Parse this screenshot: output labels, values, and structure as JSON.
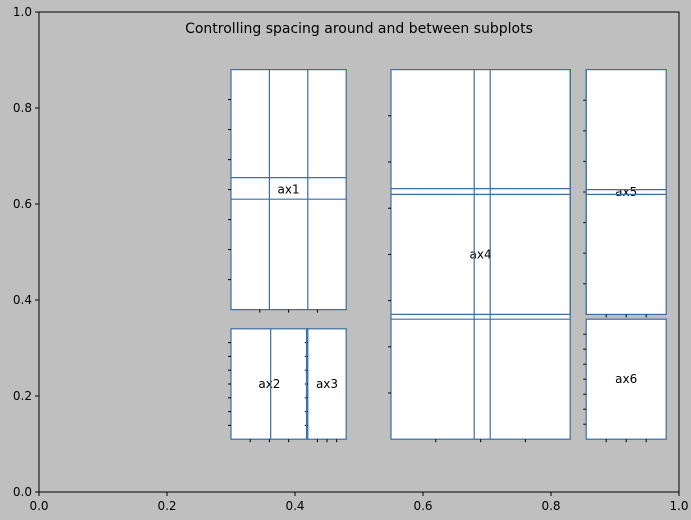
{
  "chart_data": {
    "type": "diagram",
    "title": "Controlling spacing around and between subplots",
    "xlim": [
      0,
      1
    ],
    "ylim": [
      0,
      1
    ],
    "xticks": [
      0.0,
      0.2,
      0.4,
      0.6,
      0.8,
      1.0
    ],
    "xtick_labels": [
      "0.0",
      "0.2",
      "0.4",
      "0.6",
      "0.8",
      "1.0"
    ],
    "yticks": [
      0.0,
      0.2,
      0.4,
      0.6,
      0.8,
      1.0
    ],
    "ytick_labels": [
      "0.0",
      "0.2",
      "0.4",
      "0.6",
      "0.8",
      "1.0"
    ],
    "grid": false,
    "colors": {
      "background": "#bfbfbf",
      "subplot_edge": "#3a6ea5",
      "subplot_fill": "#ffffff"
    },
    "subplots": [
      {
        "name": "ax1",
        "xrange": [
          0.3,
          0.48
        ],
        "yrange": [
          0.38,
          0.88
        ]
      },
      {
        "name": "ax2",
        "xrange": [
          0.3,
          0.42
        ],
        "yrange": [
          0.11,
          0.34
        ]
      },
      {
        "name": "ax3",
        "xrange": [
          0.42,
          0.48
        ],
        "yrange": [
          0.11,
          0.34
        ]
      },
      {
        "name": "ax4",
        "xrange": [
          0.55,
          0.83
        ],
        "yrange": [
          0.11,
          0.88
        ]
      },
      {
        "name": "ax5",
        "xrange": [
          0.855,
          0.98
        ],
        "yrange": [
          0.37,
          0.88
        ]
      },
      {
        "name": "ax6",
        "xrange": [
          0.855,
          0.98
        ],
        "yrange": [
          0.11,
          0.36
        ]
      }
    ],
    "cross_lines": [
      {
        "subplot": "ax1",
        "vertical": [
          0.36,
          0.42
        ],
        "horizontal": [
          0.655,
          0.61
        ]
      },
      {
        "subplot": "ax4",
        "vertical": [
          0.68,
          0.705
        ],
        "horizontal": [
          0.632,
          0.62,
          0.37,
          0.36
        ]
      },
      {
        "subplot": "ax5",
        "vertical": [
          0.83,
          0.855
        ],
        "horizontal": [
          0.63,
          0.62
        ]
      },
      {
        "subplot": "ax2",
        "vertical": [
          0.362
        ],
        "horizontal": []
      },
      {
        "subplot": "ax3",
        "vertical": [
          0.418
        ],
        "horizontal": []
      }
    ]
  }
}
